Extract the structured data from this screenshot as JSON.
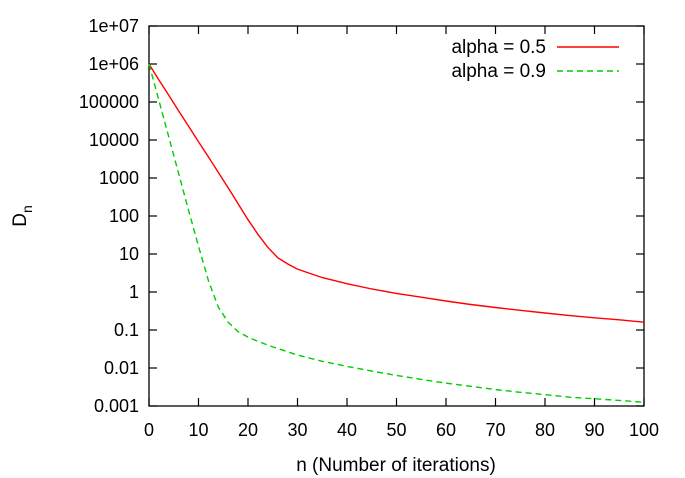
{
  "chart_data": {
    "type": "line",
    "title": "",
    "xlabel": "n (Number of iterations)",
    "ylabel": "D",
    "ylabel_subscript": "n",
    "xlim": [
      0,
      100
    ],
    "ylim": [
      0.001,
      10000000
    ],
    "y_scale": "log",
    "grid": false,
    "legend_position": "top-right",
    "x_ticks": [
      "0",
      "10",
      "20",
      "30",
      "40",
      "50",
      "60",
      "70",
      "80",
      "90",
      "100"
    ],
    "y_ticks": [
      "1e+07",
      "1e+06",
      "100000",
      "10000",
      "1000",
      "100",
      "10",
      "1",
      "0.1",
      "0.01",
      "0.001"
    ],
    "series": [
      {
        "name": "alpha = 0.5",
        "color": "#ff0000",
        "dash": "solid",
        "x": [
          0,
          2,
          4,
          6,
          8,
          10,
          12,
          14,
          16,
          18,
          20,
          22,
          24,
          26,
          28,
          30,
          35,
          40,
          45,
          50,
          55,
          60,
          65,
          70,
          75,
          80,
          85,
          90,
          95,
          100
        ],
        "y": [
          1000000,
          380000,
          150000,
          58000,
          23000,
          9000,
          3600,
          1400,
          550,
          210,
          80,
          33,
          15,
          8,
          5.5,
          4,
          2.4,
          1.65,
          1.2,
          0.92,
          0.73,
          0.58,
          0.47,
          0.39,
          0.33,
          0.28,
          0.24,
          0.21,
          0.185,
          0.16
        ]
      },
      {
        "name": "alpha = 0.9",
        "color": "#00cc00",
        "dash": "dashed",
        "x": [
          0,
          2,
          4,
          6,
          8,
          10,
          12,
          14,
          16,
          18,
          20,
          22,
          25,
          30,
          35,
          40,
          45,
          50,
          55,
          60,
          65,
          70,
          75,
          80,
          85,
          90,
          95,
          100
        ],
        "y": [
          1000000,
          110000,
          12000,
          1300,
          140,
          16,
          2,
          0.4,
          0.16,
          0.09,
          0.065,
          0.05,
          0.036,
          0.022,
          0.015,
          0.011,
          0.0083,
          0.0064,
          0.005,
          0.004,
          0.0033,
          0.0027,
          0.0023,
          0.002,
          0.0017,
          0.00155,
          0.0014,
          0.00125
        ]
      }
    ]
  }
}
